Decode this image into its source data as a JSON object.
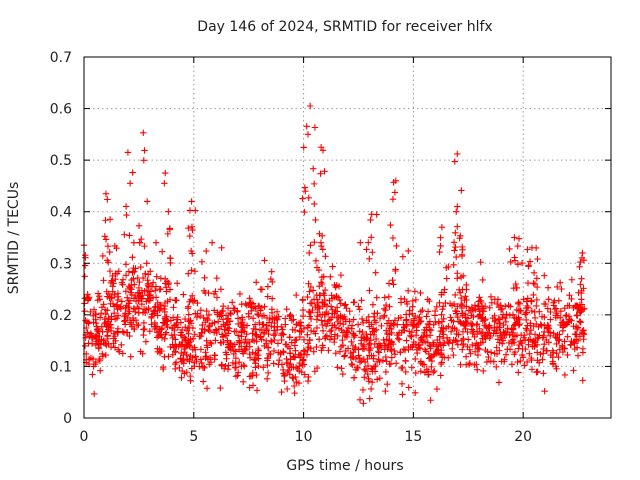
{
  "chart_data": {
    "type": "scatter",
    "title": "Day 146 of 2024, SRMTID for receiver hlfx",
    "xlabel": "GPS time / hours",
    "ylabel": "SRMTID / TECUs",
    "xlim": [
      0,
      24
    ],
    "ylim": [
      0,
      0.7
    ],
    "xticks": [
      0,
      5,
      10,
      15,
      20
    ],
    "xtick_labels": [
      "0",
      "5",
      "10",
      "15",
      "20"
    ],
    "yticks": [
      0,
      0.1,
      0.2,
      0.3,
      0.4,
      0.5,
      0.6,
      0.7
    ],
    "ytick_labels": [
      "0",
      "0.1",
      "0.2",
      "0.3",
      "0.4",
      "0.5",
      "0.6",
      "0.7"
    ],
    "grid": true,
    "marker": "+",
    "series_color": "#ff0000",
    "x_end": 22.8,
    "estimated_profile": {
      "hours": [
        0,
        0.5,
        1,
        1.5,
        2,
        2.5,
        3,
        3.5,
        4,
        4.5,
        5,
        5.5,
        6,
        6.5,
        7,
        7.5,
        8,
        8.5,
        9,
        9.5,
        10,
        10.5,
        11,
        11.5,
        12,
        12.5,
        13,
        13.5,
        14,
        14.5,
        15,
        15.5,
        16,
        16.5,
        17,
        17.5,
        18,
        18.5,
        19,
        19.5,
        20,
        20.5,
        21,
        21.5,
        22,
        22.5,
        22.8
      ],
      "typical_value": [
        0.17,
        0.15,
        0.19,
        0.2,
        0.21,
        0.22,
        0.21,
        0.2,
        0.17,
        0.15,
        0.16,
        0.15,
        0.17,
        0.16,
        0.15,
        0.16,
        0.17,
        0.17,
        0.14,
        0.13,
        0.15,
        0.2,
        0.21,
        0.19,
        0.17,
        0.14,
        0.13,
        0.15,
        0.16,
        0.15,
        0.16,
        0.15,
        0.14,
        0.17,
        0.19,
        0.18,
        0.17,
        0.17,
        0.16,
        0.17,
        0.16,
        0.17,
        0.16,
        0.17,
        0.16,
        0.17,
        0.18
      ]
    },
    "notable_peaks": [
      {
        "x": 0.0,
        "y": 0.335
      },
      {
        "x": 1.0,
        "y": 0.435
      },
      {
        "x": 2.0,
        "y": 0.515
      },
      {
        "x": 2.7,
        "y": 0.553
      },
      {
        "x": 3.7,
        "y": 0.475
      },
      {
        "x": 4.9,
        "y": 0.42
      },
      {
        "x": 10.3,
        "y": 0.605
      },
      {
        "x": 10.2,
        "y": 0.55
      },
      {
        "x": 10.8,
        "y": 0.525
      },
      {
        "x": 14.2,
        "y": 0.46
      },
      {
        "x": 13.1,
        "y": 0.395
      },
      {
        "x": 16.3,
        "y": 0.37
      },
      {
        "x": 17.0,
        "y": 0.512
      },
      {
        "x": 17.0,
        "y": 0.41
      },
      {
        "x": 19.6,
        "y": 0.35
      },
      {
        "x": 20.4,
        "y": 0.33
      },
      {
        "x": 22.7,
        "y": 0.32
      }
    ]
  }
}
